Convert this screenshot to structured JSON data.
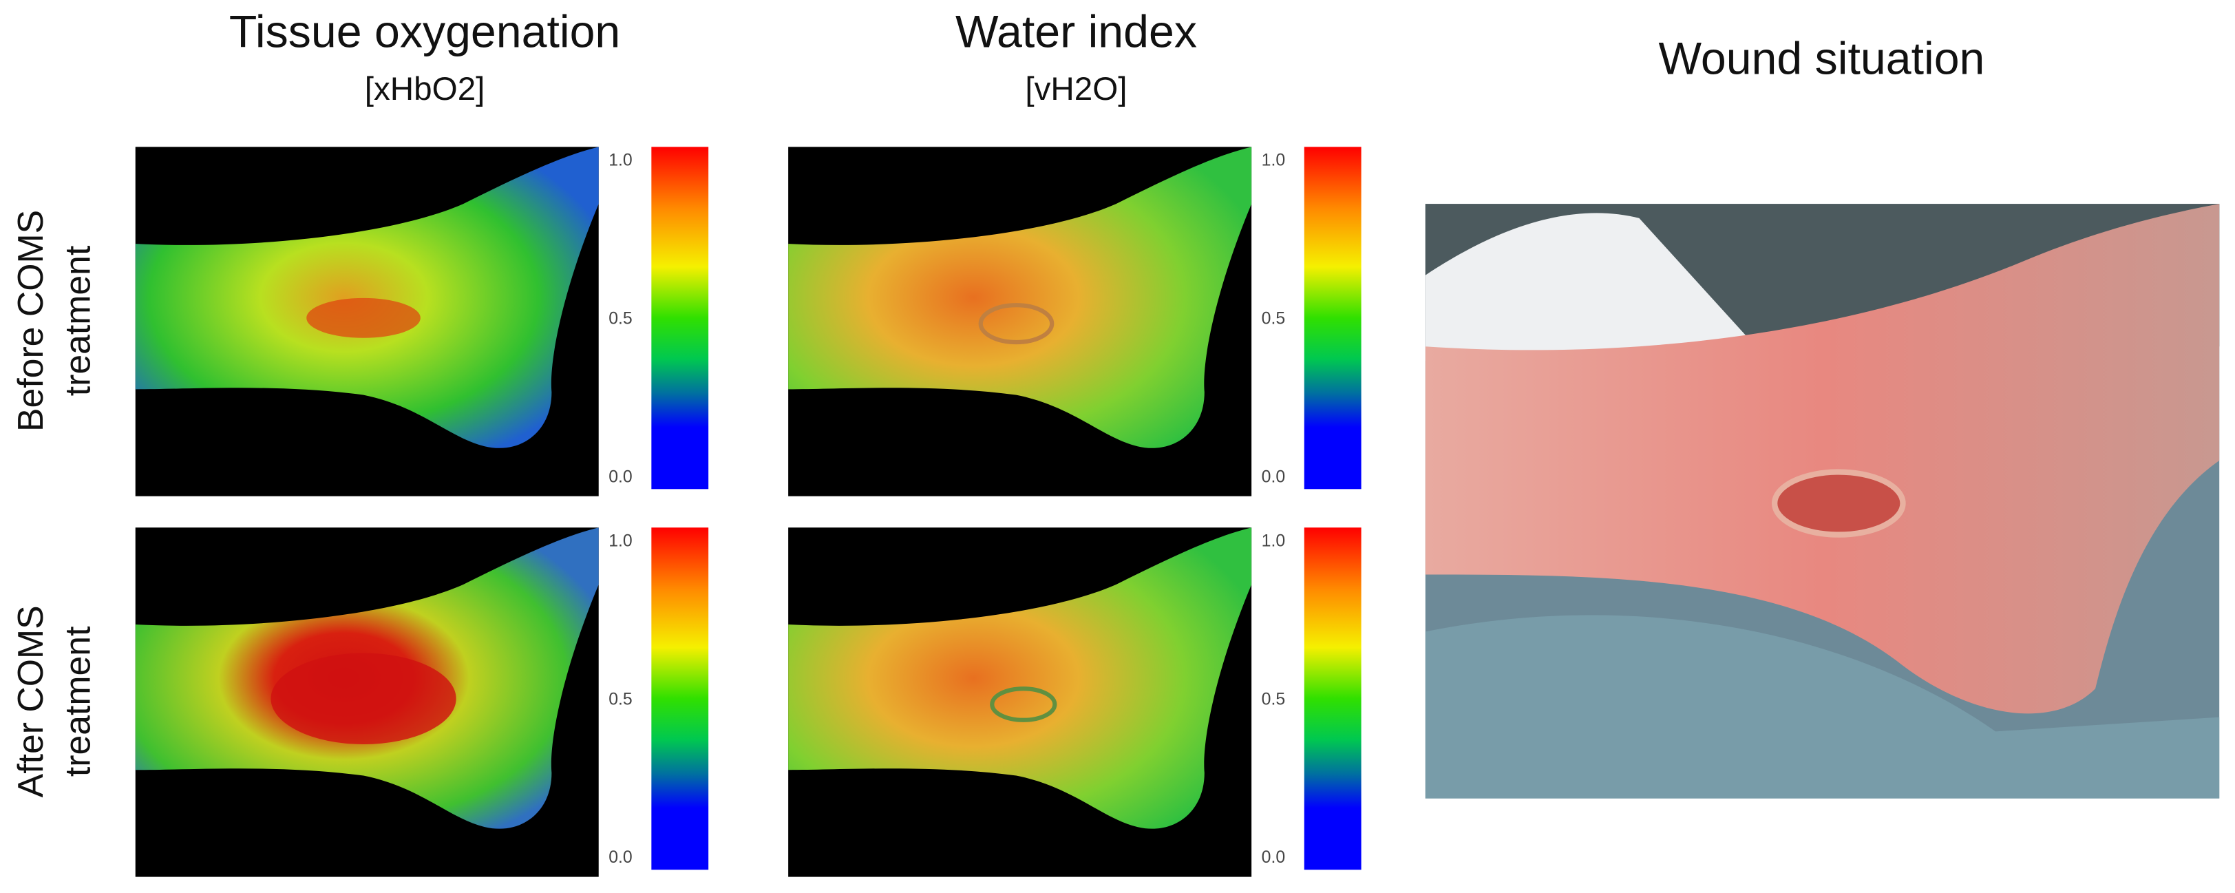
{
  "columns": [
    {
      "title": "Tissue oxygenation",
      "subtitle": "[xHbO2]"
    },
    {
      "title": "Water index",
      "subtitle": "[vH2O]"
    },
    {
      "title": "Wound situation"
    }
  ],
  "rows": [
    {
      "label": [
        "Before COMS",
        "treatment"
      ]
    },
    {
      "label": [
        "After COMS",
        "treatment"
      ]
    }
  ],
  "colorbar": {
    "range": [
      0,
      1
    ],
    "ticks": [
      {
        "value": 0,
        "label": "0.0"
      },
      {
        "value": 0.5,
        "label": "0.5"
      },
      {
        "value": 1,
        "label": "1.0"
      }
    ]
  }
}
